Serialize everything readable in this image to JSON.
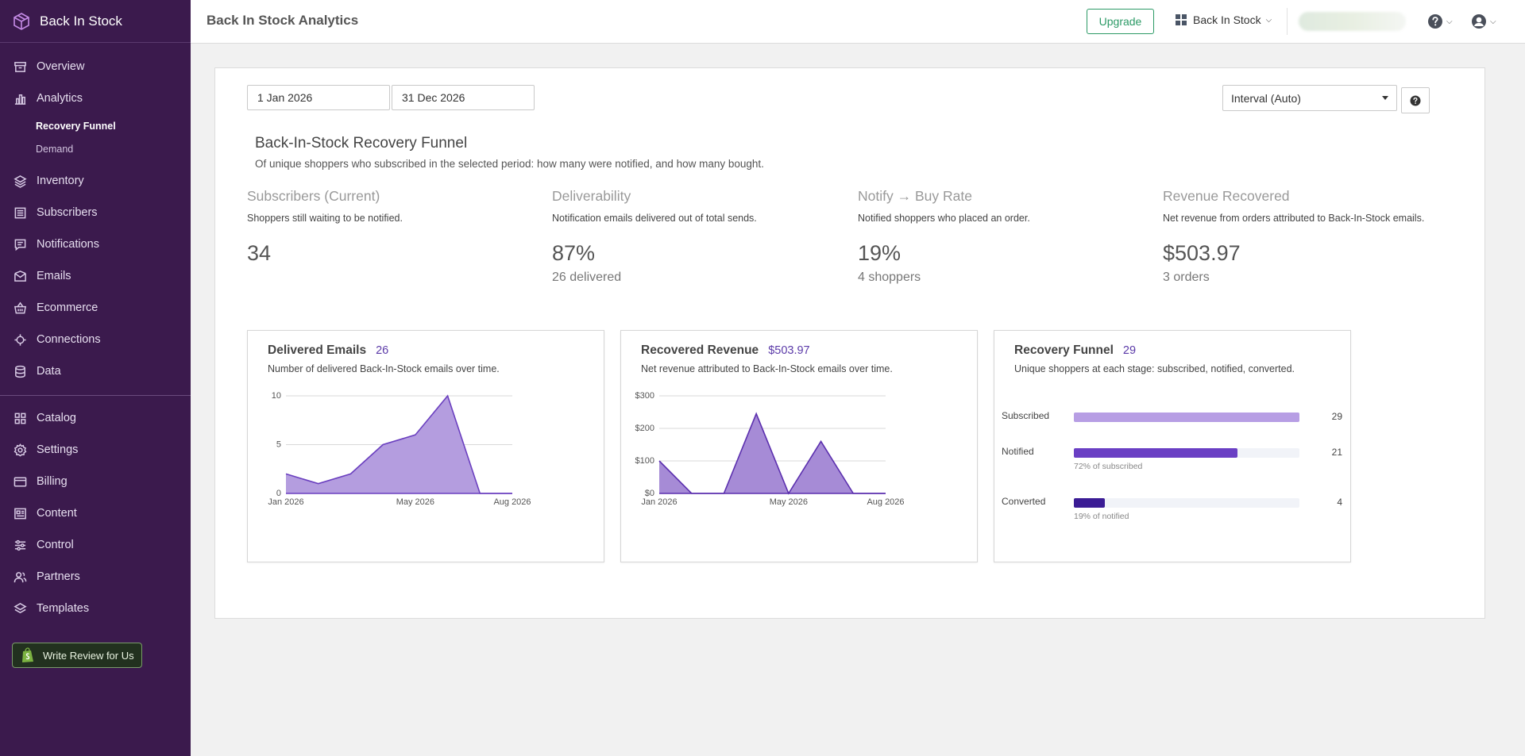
{
  "brand": {
    "name": "Back In Stock",
    "icon": "box-icon"
  },
  "sidebar": {
    "items": [
      {
        "label": "Overview",
        "icon": "archive-icon"
      },
      {
        "label": "Analytics",
        "icon": "bar-chart-icon"
      },
      {
        "label": "Inventory",
        "icon": "layers-icon"
      },
      {
        "label": "Subscribers",
        "icon": "list-icon"
      },
      {
        "label": "Notifications",
        "icon": "message-icon"
      },
      {
        "label": "Emails",
        "icon": "mail-icon"
      },
      {
        "label": "Ecommerce",
        "icon": "basket-icon"
      },
      {
        "label": "Connections",
        "icon": "network-icon"
      },
      {
        "label": "Data",
        "icon": "database-icon"
      },
      {
        "label": "Catalog",
        "icon": "grid-icon"
      },
      {
        "label": "Settings",
        "icon": "gear-icon"
      },
      {
        "label": "Billing",
        "icon": "card-icon"
      },
      {
        "label": "Content",
        "icon": "content-icon"
      },
      {
        "label": "Control",
        "icon": "sliders-icon"
      },
      {
        "label": "Partners",
        "icon": "users-icon"
      },
      {
        "label": "Templates",
        "icon": "stack-icon"
      }
    ],
    "analytics_sub": [
      {
        "label": "Recovery Funnel",
        "active": true
      },
      {
        "label": "Demand",
        "active": false
      }
    ],
    "review_button": "Write Review for Us"
  },
  "header": {
    "title": "Back In Stock Analytics",
    "upgrade": "Upgrade",
    "store": "Back In Stock"
  },
  "filters": {
    "start_date": "1 Jan 2026",
    "end_date": "31 Dec 2026",
    "interval": "Interval (Auto)"
  },
  "funnel": {
    "title": "Back-In-Stock Recovery Funnel",
    "description": "Of unique shoppers who subscribed in the selected period: how many were notified, and how many bought."
  },
  "kpis": [
    {
      "title": "Subscribers (Current)",
      "desc": "Shoppers still waiting to be notified.",
      "value": "34",
      "sub": ""
    },
    {
      "title": "Deliverability",
      "desc": "Notification emails delivered out of total sends.",
      "value": "87%",
      "sub": "26 delivered"
    },
    {
      "title": "Notify → Buy Rate",
      "desc": "Notified shoppers who placed an order.",
      "value": "19%",
      "sub": "4 shoppers"
    },
    {
      "title": "Revenue Recovered",
      "desc": "Net revenue from orders attributed to Back-In-Stock emails.",
      "value": "$503.97",
      "sub": "3 orders"
    }
  ],
  "cards": {
    "delivered": {
      "title": "Delivered Emails",
      "badge": "26",
      "desc": "Number of delivered Back-In-Stock emails over time."
    },
    "revenue": {
      "title": "Recovered Revenue",
      "badge": "$503.97",
      "desc": "Net revenue attributed to Back-In-Stock emails over time."
    },
    "recovery": {
      "title": "Recovery Funnel",
      "badge": "29",
      "desc": "Unique shoppers at each stage: subscribed, notified, converted."
    }
  },
  "chart_data": [
    {
      "type": "area",
      "title": "Delivered Emails",
      "x": [
        "Jan 2026",
        "Feb 2026",
        "Mar 2026",
        "Apr 2026",
        "May 2026",
        "Jun 2026",
        "Jul 2026",
        "Aug 2026"
      ],
      "values": [
        2,
        1,
        2,
        5,
        6,
        10,
        0,
        0
      ],
      "x_tick_labels": [
        "Jan 2026",
        "May 2026",
        "Aug 2026"
      ],
      "y_ticks": [
        0,
        5,
        10
      ],
      "ylim": [
        0,
        10
      ],
      "grid": true,
      "color": "#b49ddf",
      "line_color": "#6a3fbf"
    },
    {
      "type": "area",
      "title": "Recovered Revenue",
      "x": [
        "Jan 2026",
        "Feb 2026",
        "Mar 2026",
        "Apr 2026",
        "May 2026",
        "Jun 2026",
        "Jul 2026",
        "Aug 2026"
      ],
      "values": [
        100,
        0,
        0,
        245,
        0,
        160,
        0,
        0
      ],
      "x_tick_labels": [
        "Jan 2026",
        "May 2026",
        "Aug 2026"
      ],
      "y_ticks": [
        "$0",
        "$100",
        "$200",
        "$300"
      ],
      "y_tick_values": [
        0,
        100,
        200,
        300
      ],
      "ylim": [
        0,
        300
      ],
      "grid": true,
      "color": "#a68bd6",
      "line_color": "#5b2fae"
    },
    {
      "type": "bar",
      "title": "Recovery Funnel",
      "categories": [
        "Subscribed",
        "Notified",
        "Converted"
      ],
      "values": [
        29,
        21,
        4
      ],
      "notes": [
        "",
        "72% of subscribed",
        "19% of notified"
      ],
      "colors": [
        "#b79ee4",
        "#6a3fc4",
        "#3b1c95"
      ]
    }
  ]
}
